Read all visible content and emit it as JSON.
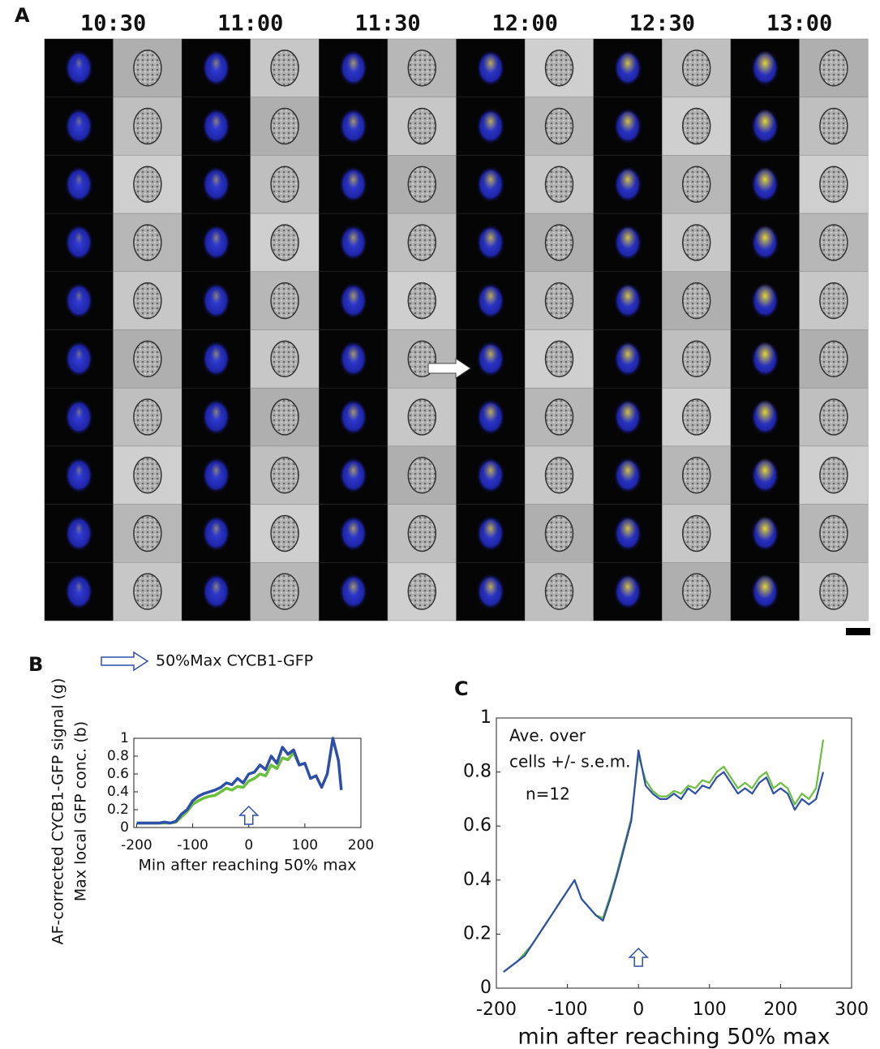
{
  "panel_a": {
    "label": "A",
    "times": [
      "10:30",
      "11:00",
      "11:30",
      "12:00",
      "12:30",
      "13:00"
    ]
  },
  "chart_data": [
    {
      "type": "line",
      "label": "B",
      "legend_text": "50%Max CYCB1-GFP",
      "ylabel": [
        "AF-corrected CYCB1-GFP signal (g)",
        "Max local GFP conc. (b)"
      ],
      "xlabel": "Min after reaching 50% max",
      "xlim": [
        -205,
        200
      ],
      "ylim": [
        0,
        1
      ],
      "xticks": [
        -200,
        -100,
        0,
        100,
        200
      ],
      "yticks": [
        0,
        0.2,
        0.4,
        0.6,
        0.8,
        1
      ],
      "x": [
        -200,
        -190,
        -180,
        -170,
        -160,
        -150,
        -140,
        -130,
        -120,
        -110,
        -100,
        -90,
        -80,
        -70,
        -60,
        -50,
        -40,
        -30,
        -20,
        -10,
        0,
        10,
        20,
        30,
        40,
        50,
        60,
        70,
        80,
        90,
        100,
        110,
        120,
        130,
        140,
        150,
        160,
        165
      ],
      "series": [
        {
          "color": "#6abf3c",
          "values": [
            0.05,
            0.05,
            0.05,
            0.05,
            0.05,
            0.05,
            0.05,
            0.06,
            0.12,
            0.18,
            0.26,
            0.3,
            0.33,
            0.35,
            0.36,
            0.4,
            0.44,
            0.42,
            0.46,
            0.45,
            0.52,
            0.55,
            0.6,
            0.58,
            0.7,
            0.66,
            0.78,
            0.76,
            0.84,
            0.7,
            0.72,
            null,
            null,
            null,
            null,
            null,
            null,
            null
          ]
        },
        {
          "color": "#2e4fa8",
          "values": [
            0.05,
            0.05,
            0.05,
            0.05,
            0.05,
            0.06,
            0.05,
            0.07,
            0.15,
            0.2,
            0.3,
            0.35,
            0.38,
            0.4,
            0.42,
            0.45,
            0.5,
            0.48,
            0.55,
            0.5,
            0.6,
            0.62,
            0.7,
            0.65,
            0.8,
            0.72,
            0.9,
            0.82,
            0.87,
            0.7,
            0.72,
            0.55,
            0.58,
            0.45,
            0.6,
            1,
            0.75,
            0.42
          ]
        }
      ]
    },
    {
      "type": "line",
      "label": "C",
      "annotations": [
        "Ave. over",
        "cells +/- s.e.m.",
        "n=12"
      ],
      "xlabel": "min after reaching 50% max",
      "xlim": [
        -200,
        300
      ],
      "ylim": [
        0,
        1
      ],
      "xticks": [
        -200,
        -100,
        0,
        100,
        200,
        300
      ],
      "yticks": [
        0,
        0.2,
        0.4,
        0.6,
        0.8,
        1
      ],
      "x": [
        -190,
        -180,
        -170,
        -160,
        -150,
        -140,
        -130,
        -120,
        -110,
        -100,
        -90,
        -80,
        -70,
        -60,
        -50,
        -40,
        -30,
        -20,
        -10,
        0,
        10,
        20,
        30,
        40,
        50,
        60,
        70,
        80,
        90,
        100,
        110,
        120,
        130,
        140,
        150,
        160,
        170,
        180,
        190,
        200,
        210,
        220,
        230,
        240,
        250,
        260
      ],
      "series": [
        {
          "color": "#6abf3c",
          "values": [
            0.06,
            0.08,
            0.1,
            0.13,
            0.16,
            0.2,
            0.24,
            0.28,
            0.32,
            0.36,
            0.4,
            0.33,
            0.3,
            0.27,
            0.26,
            0.34,
            0.43,
            0.53,
            0.63,
            0.86,
            0.77,
            0.73,
            0.71,
            0.71,
            0.73,
            0.72,
            0.75,
            0.74,
            0.77,
            0.76,
            0.8,
            0.82,
            0.78,
            0.74,
            0.76,
            0.74,
            0.78,
            0.8,
            0.74,
            0.76,
            0.74,
            0.68,
            0.72,
            0.7,
            0.74,
            0.92
          ]
        },
        {
          "color": "#2e4fa8",
          "values": [
            0.06,
            0.08,
            0.1,
            0.12,
            0.16,
            0.2,
            0.24,
            0.28,
            0.32,
            0.36,
            0.4,
            0.33,
            0.3,
            0.27,
            0.25,
            0.33,
            0.42,
            0.52,
            0.62,
            0.88,
            0.75,
            0.72,
            0.7,
            0.7,
            0.72,
            0.7,
            0.74,
            0.72,
            0.75,
            0.74,
            0.78,
            0.8,
            0.76,
            0.72,
            0.74,
            0.72,
            0.76,
            0.78,
            0.72,
            0.74,
            0.72,
            0.66,
            0.7,
            0.68,
            0.7,
            0.8
          ]
        }
      ]
    }
  ]
}
